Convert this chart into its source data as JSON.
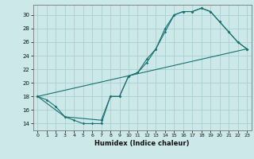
{
  "xlabel": "Humidex (Indice chaleur)",
  "xlim": [
    -0.5,
    23.5
  ],
  "ylim": [
    13.0,
    31.5
  ],
  "xticks": [
    0,
    1,
    2,
    3,
    4,
    5,
    6,
    7,
    8,
    9,
    10,
    11,
    12,
    13,
    14,
    15,
    16,
    17,
    18,
    19,
    20,
    21,
    22,
    23
  ],
  "yticks": [
    14,
    16,
    18,
    20,
    22,
    24,
    26,
    28,
    30
  ],
  "bg_color": "#cce8e8",
  "grid_color": "#aad0d0",
  "line_color": "#1a7070",
  "line1_x": [
    0,
    1,
    2,
    3,
    4,
    5,
    6,
    7,
    8,
    9,
    10,
    11,
    12,
    13,
    14,
    15,
    16,
    17,
    18,
    19,
    20,
    21,
    22,
    23
  ],
  "line1_y": [
    18,
    17.5,
    16.5,
    15.0,
    14.5,
    14.0,
    14.0,
    14.0,
    18.0,
    18.0,
    21.0,
    21.5,
    23.5,
    25.0,
    28.0,
    30.0,
    30.5,
    30.5,
    31.0,
    30.5,
    29.0,
    27.5,
    26.0,
    25.0
  ],
  "line2_x": [
    0,
    3,
    7,
    8,
    9,
    10,
    11,
    12,
    13,
    14,
    15,
    16,
    17,
    18,
    19,
    20,
    21,
    22,
    23
  ],
  "line2_y": [
    18,
    15.0,
    14.5,
    18.0,
    18.0,
    21.0,
    21.5,
    23.0,
    25.0,
    27.5,
    30.0,
    30.5,
    30.5,
    31.0,
    30.5,
    29.0,
    27.5,
    26.0,
    25.0
  ],
  "line3_x": [
    0,
    23
  ],
  "line3_y": [
    18,
    25.0
  ]
}
